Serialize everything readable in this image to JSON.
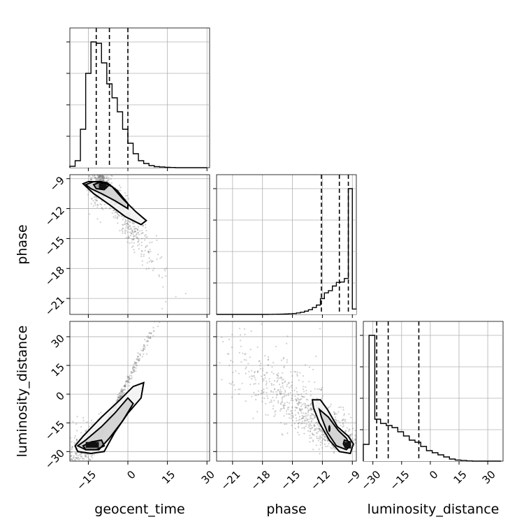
{
  "chart_data": {
    "type": "corner",
    "parameters": [
      "geocent_time",
      "phase",
      "luminosity_distance"
    ],
    "ranges": {
      "geocent_time": [
        -22,
        31
      ],
      "phase": [
        -22.6,
        -8.6
      ],
      "luminosity_distance": [
        -35,
        38
      ]
    },
    "ticks": {
      "geocent_time": [
        -15,
        0,
        15,
        30
      ],
      "phase": [
        -21,
        -18,
        -15,
        -12,
        -9
      ],
      "luminosity_distance": [
        -30,
        -15,
        0,
        15,
        30
      ]
    },
    "grid": true,
    "histograms": [
      {
        "param": "geocent_time",
        "bins": [
          -22,
          -20,
          -18,
          -16,
          -14,
          -12,
          -10,
          -8,
          -6,
          -4,
          -2,
          0,
          2,
          4,
          6,
          8,
          10,
          12,
          14,
          16,
          18,
          20,
          22,
          24,
          26,
          28,
          30
        ],
        "counts": [
          2,
          10,
          55,
          135,
          180,
          178,
          150,
          120,
          100,
          80,
          55,
          35,
          20,
          10,
          6,
          3,
          1.5,
          1,
          0.5,
          0.3,
          0,
          0,
          0,
          0,
          0,
          0
        ],
        "quantiles": [
          -12,
          -7,
          0
        ]
      },
      {
        "param": "phase",
        "bins": [
          -22.6,
          -22.2,
          -21.8,
          -21.4,
          -21.0,
          -20.6,
          -20.2,
          -19.8,
          -19.4,
          -19.0,
          -18.6,
          -18.2,
          -17.8,
          -17.4,
          -17.0,
          -16.6,
          -16.2,
          -15.8,
          -15.4,
          -15.0,
          -14.6,
          -14.2,
          -13.8,
          -13.4,
          -13.0,
          -12.6,
          -12.2,
          -11.8,
          -11.4,
          -11.0,
          -10.6,
          -10.2,
          -9.8,
          -9.4,
          -9.0,
          -8.6
        ],
        "counts": [
          0,
          0,
          0,
          0,
          0,
          0,
          0,
          0,
          0,
          0,
          0,
          0,
          0,
          0.2,
          0.4,
          0.6,
          0.9,
          1.2,
          1.8,
          2.5,
          4,
          6,
          9,
          13,
          19,
          26,
          44,
          60,
          66,
          79,
          89,
          90,
          100,
          350,
          15
        ],
        "quantiles": [
          -12.1,
          -10.3,
          -9.4
        ]
      },
      {
        "param": "luminosity_distance",
        "bins": [
          -35,
          -32,
          -29,
          -26,
          -23,
          -20,
          -17,
          -14,
          -11,
          -8,
          -5,
          -2,
          1,
          4,
          7,
          10,
          13,
          16,
          19,
          22,
          25,
          28,
          31,
          34,
          37
        ],
        "counts": [
          8,
          60,
          20,
          18,
          17,
          16,
          14,
          12,
          10,
          9,
          7,
          5,
          4,
          3,
          2,
          1,
          0.5,
          0.3,
          0.1,
          0,
          0,
          0,
          0,
          0
        ],
        "quantiles": [
          -28,
          -22,
          -6
        ]
      }
    ],
    "pairs": [
      {
        "x": "geocent_time",
        "y": "phase",
        "correlation": "negative",
        "peak": [
          -9,
          -9.7
        ],
        "spread": {
          "along": 7,
          "across": 1.0
        },
        "contours": [
          [
            [
              -17,
              -9.5
            ],
            [
              -15,
              -9.3
            ],
            [
              -10,
              -9.3
            ],
            [
              -6,
              -9.8
            ],
            [
              -2,
              -11.0
            ],
            [
              3,
              -12.3
            ],
            [
              7,
              -13.2
            ],
            [
              5,
              -13.6
            ],
            [
              -1,
              -12.8
            ],
            [
              -7,
              -11.6
            ],
            [
              -13,
              -10.5
            ]
          ],
          [
            [
              -16,
              -9.6
            ],
            [
              -13,
              -9.3
            ],
            [
              -8,
              -9.4
            ],
            [
              -4,
              -10.2
            ],
            [
              0,
              -11.5
            ],
            [
              0,
              -12.0
            ],
            [
              -5,
              -11.2
            ],
            [
              -10,
              -10.5
            ],
            [
              -14,
              -10.0
            ]
          ],
          [
            [
              -13,
              -9.6
            ],
            [
              -11,
              -9.4
            ],
            [
              -7,
              -9.6
            ],
            [
              -9,
              -10.1
            ],
            [
              -12,
              -10.0
            ]
          ]
        ],
        "peak_block": [
          -11,
          -9.5,
          -8,
          -10.0
        ]
      },
      {
        "x": "geocent_time",
        "y": "luminosity_distance",
        "correlation": "positive",
        "peak": [
          -12,
          -26
        ],
        "spread": {
          "along": 9,
          "across": 3
        },
        "contours": [
          [
            [
              -20,
              -27
            ],
            [
              -17,
              -22
            ],
            [
              -10,
              -12
            ],
            [
              -3,
              -3
            ],
            [
              2,
              4
            ],
            [
              6,
              6
            ],
            [
              5,
              -2
            ],
            [
              0,
              -10
            ],
            [
              -5,
              -20
            ],
            [
              -9,
              -30
            ],
            [
              -14,
              -31
            ],
            [
              -19,
              -30
            ]
          ],
          [
            [
              -19,
              -27
            ],
            [
              -16,
              -24
            ],
            [
              -10,
              -17
            ],
            [
              -5,
              -10
            ],
            [
              0,
              -2
            ],
            [
              2,
              -5
            ],
            [
              -2,
              -14
            ],
            [
              -7,
              -23
            ],
            [
              -11,
              -29
            ],
            [
              -16,
              -29
            ]
          ],
          [
            [
              -17,
              -27
            ],
            [
              -14,
              -25
            ],
            [
              -10,
              -24
            ],
            [
              -9,
              -27
            ],
            [
              -12,
              -29
            ],
            [
              -16,
              -29
            ]
          ]
        ],
        "peak_block": [
          -16,
          -25,
          -11,
          -28
        ]
      },
      {
        "x": "phase",
        "y": "luminosity_distance",
        "correlation": "negative",
        "peak": [
          -9.4,
          -26
        ],
        "spread": {
          "along": 18,
          "across": 0.8
        },
        "contours": [
          [
            [
              -13.0,
              -3
            ],
            [
              -12.2,
              -3
            ],
            [
              -11.5,
              -8
            ],
            [
              -10.5,
              -17
            ],
            [
              -9.4,
              -22
            ],
            [
              -8.9,
              -26
            ],
            [
              -9.2,
              -31
            ],
            [
              -10.3,
              -30
            ],
            [
              -11.3,
              -24
            ],
            [
              -12.3,
              -15
            ],
            [
              -12.9,
              -7
            ]
          ],
          [
            [
              -12.3,
              -8
            ],
            [
              -11.4,
              -12
            ],
            [
              -10.4,
              -19
            ],
            [
              -9.6,
              -23
            ],
            [
              -9.2,
              -27
            ],
            [
              -9.6,
              -29
            ],
            [
              -10.6,
              -27
            ],
            [
              -11.5,
              -20
            ],
            [
              -12.1,
              -12
            ]
          ],
          [
            [
              -9.8,
              -24
            ],
            [
              -9.2,
              -25
            ],
            [
              -9.2,
              -28
            ],
            [
              -9.7,
              -28
            ],
            [
              -9.9,
              -26
            ]
          ]
        ],
        "mini_blob": [
          -11.3,
          -18
        ],
        "peak_block": [
          -9.8,
          -25,
          -9.2,
          -28
        ]
      }
    ],
    "title": "",
    "legend": "none"
  }
}
